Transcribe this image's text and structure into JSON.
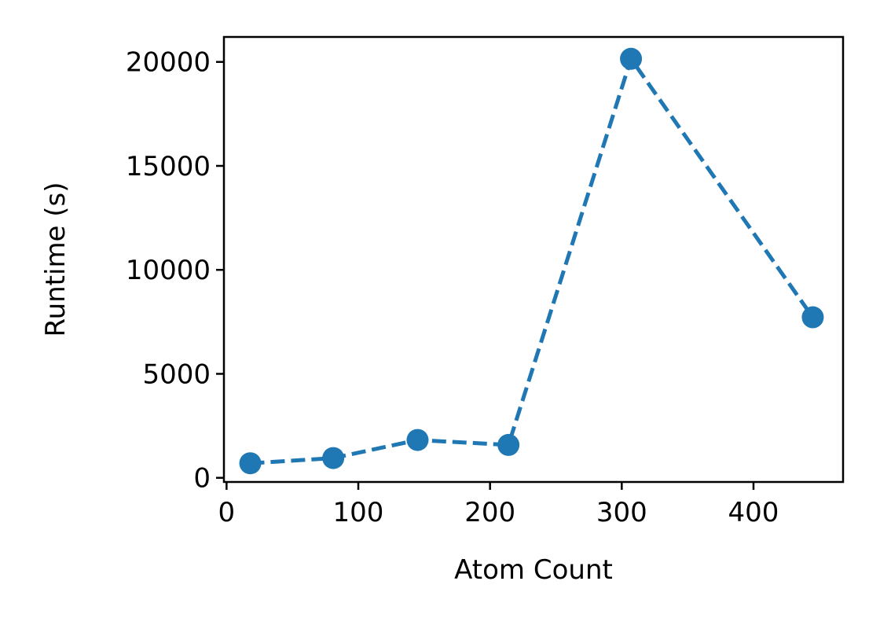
{
  "chart_data": {
    "type": "line",
    "title": "",
    "xlabel": "Atom Count",
    "ylabel": "Runtime (s)",
    "xlim": [
      -2,
      468
    ],
    "ylim": [
      -200,
      21200
    ],
    "xticks": [
      0,
      100,
      200,
      300,
      400
    ],
    "yticks": [
      0,
      5000,
      10000,
      15000,
      20000
    ],
    "xtick_labels": [
      "0",
      "100",
      "200",
      "300",
      "400"
    ],
    "ytick_labels": [
      "0",
      "5000",
      "10000",
      "15000",
      "20000"
    ],
    "grid": false,
    "series": [
      {
        "color": "#1f77b4",
        "line_style": "dashed",
        "marker": "circle",
        "x": [
          18,
          81,
          145,
          214,
          307,
          445
        ],
        "y": [
          700,
          950,
          1820,
          1580,
          20150,
          7720
        ]
      }
    ]
  }
}
